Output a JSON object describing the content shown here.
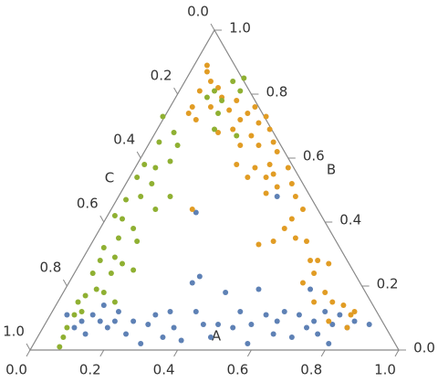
{
  "chart_data": {
    "type": "ternary",
    "axis_labels": {
      "bottom": "A",
      "right": "B",
      "left": "C"
    },
    "xlim": [
      0,
      1
    ],
    "ylim": [
      0,
      1
    ],
    "clim": [
      0,
      1
    ],
    "xticks": [
      {
        "value": 0,
        "label": "0.0"
      },
      {
        "value": 0.2,
        "label": "0.2"
      },
      {
        "value": 0.4,
        "label": "0.4"
      },
      {
        "value": 0.6,
        "label": "0.6"
      },
      {
        "value": 0.8,
        "label": "0.8"
      },
      {
        "value": 1,
        "label": "1.0"
      }
    ],
    "yticks": [
      {
        "value": 0,
        "label": "0.0"
      },
      {
        "value": 0.2,
        "label": "0.2"
      },
      {
        "value": 0.4,
        "label": "0.4"
      },
      {
        "value": 0.6,
        "label": "0.6"
      },
      {
        "value": 0.8,
        "label": "0.8"
      },
      {
        "value": 1,
        "label": "1.0"
      }
    ],
    "cticks": [
      {
        "value": 0,
        "label": "0.0"
      },
      {
        "value": 0.2,
        "label": "0.2"
      },
      {
        "value": 0.4,
        "label": "0.4"
      },
      {
        "value": 0.6,
        "label": "0.6"
      },
      {
        "value": 0.8,
        "label": "0.8"
      },
      {
        "value": 1,
        "label": "1.0"
      }
    ],
    "series": [
      {
        "color": "#5e81b5",
        "x": [
          0.1,
          0.12,
          0.14,
          0.15,
          0.17,
          0.19,
          0.2,
          0.21,
          0.23,
          0.24,
          0.26,
          0.28,
          0.3,
          0.32,
          0.34,
          0.36,
          0.38,
          0.39,
          0.41,
          0.44,
          0.45,
          0.46,
          0.47,
          0.49,
          0.51,
          0.53,
          0.55,
          0.57,
          0.59,
          0.6,
          0.62,
          0.64,
          0.66,
          0.67,
          0.69,
          0.71,
          0.73,
          0.75,
          0.76,
          0.77,
          0.78,
          0.8,
          0.81,
          0.82,
          0.84,
          0.86,
          0.88,
          0.92,
          0.67,
          0.45
        ],
        "y": [
          0.11,
          0.07,
          0.09,
          0.05,
          0.11,
          0.09,
          0.14,
          0.07,
          0.09,
          0.12,
          0.05,
          0.09,
          0.02,
          0.08,
          0.11,
          0.04,
          0.12,
          0.07,
          0.03,
          0.21,
          0.12,
          0.23,
          0.08,
          0.04,
          0.08,
          0.18,
          0.07,
          0.12,
          0.02,
          0.08,
          0.19,
          0.11,
          0.05,
          0.09,
          0.12,
          0.04,
          0.11,
          0.07,
          0.19,
          0.09,
          0.05,
          0.12,
          0.02,
          0.08,
          0.11,
          0.07,
          0.09,
          0.08,
          0.48,
          0.43
        ]
      },
      {
        "color": "#e19c24",
        "x": [
          0.48,
          0.48,
          0.49,
          0.46,
          0.51,
          0.44,
          0.43,
          0.45,
          0.49,
          0.52,
          0.54,
          0.56,
          0.57,
          0.59,
          0.61,
          0.62,
          0.64,
          0.65,
          0.55,
          0.51,
          0.57,
          0.6,
          0.62,
          0.66,
          0.67,
          0.65,
          0.61,
          0.59,
          0.56,
          0.64,
          0.66,
          0.7,
          0.71,
          0.72,
          0.67,
          0.64,
          0.74,
          0.71,
          0.69,
          0.66,
          0.62,
          0.72,
          0.75,
          0.76,
          0.78,
          0.81,
          0.77,
          0.74,
          0.8,
          0.82,
          0.85,
          0.77,
          0.81,
          0.87,
          0.86,
          0.88,
          0.44
        ],
        "y": [
          0.89,
          0.87,
          0.84,
          0.81,
          0.82,
          0.76,
          0.74,
          0.72,
          0.76,
          0.79,
          0.75,
          0.78,
          0.72,
          0.74,
          0.76,
          0.71,
          0.73,
          0.69,
          0.69,
          0.68,
          0.64,
          0.67,
          0.64,
          0.65,
          0.62,
          0.58,
          0.57,
          0.54,
          0.58,
          0.54,
          0.55,
          0.57,
          0.52,
          0.48,
          0.51,
          0.49,
          0.44,
          0.41,
          0.38,
          0.34,
          0.33,
          0.35,
          0.34,
          0.28,
          0.28,
          0.27,
          0.24,
          0.21,
          0.18,
          0.15,
          0.14,
          0.15,
          0.09,
          0.11,
          0.07,
          0.12,
          0.44
        ]
      },
      {
        "color": "#8fb032",
        "x": [
          0.55,
          0.57,
          0.58,
          0.5,
          0.52,
          0.51,
          0.48,
          0.36,
          0.39,
          0.4,
          0.38,
          0.35,
          0.34,
          0.31,
          0.29,
          0.33,
          0.3,
          0.38,
          0.34,
          0.26,
          0.25,
          0.23,
          0.28,
          0.29,
          0.24,
          0.2,
          0.23,
          0.19,
          0.25,
          0.28,
          0.22,
          0.17,
          0.18,
          0.15,
          0.2,
          0.23,
          0.14,
          0.12,
          0.1,
          0.09,
          0.08,
          0.13,
          0.56,
          0.5
        ],
        "y": [
          0.84,
          0.81,
          0.85,
          0.81,
          0.78,
          0.74,
          0.79,
          0.73,
          0.68,
          0.64,
          0.59,
          0.65,
          0.57,
          0.58,
          0.54,
          0.52,
          0.48,
          0.48,
          0.44,
          0.47,
          0.41,
          0.42,
          0.38,
          0.34,
          0.35,
          0.32,
          0.29,
          0.28,
          0.27,
          0.25,
          0.24,
          0.24,
          0.19,
          0.17,
          0.18,
          0.15,
          0.12,
          0.11,
          0.07,
          0.04,
          0.01,
          0.15,
          0.67,
          0.69
        ]
      }
    ]
  }
}
